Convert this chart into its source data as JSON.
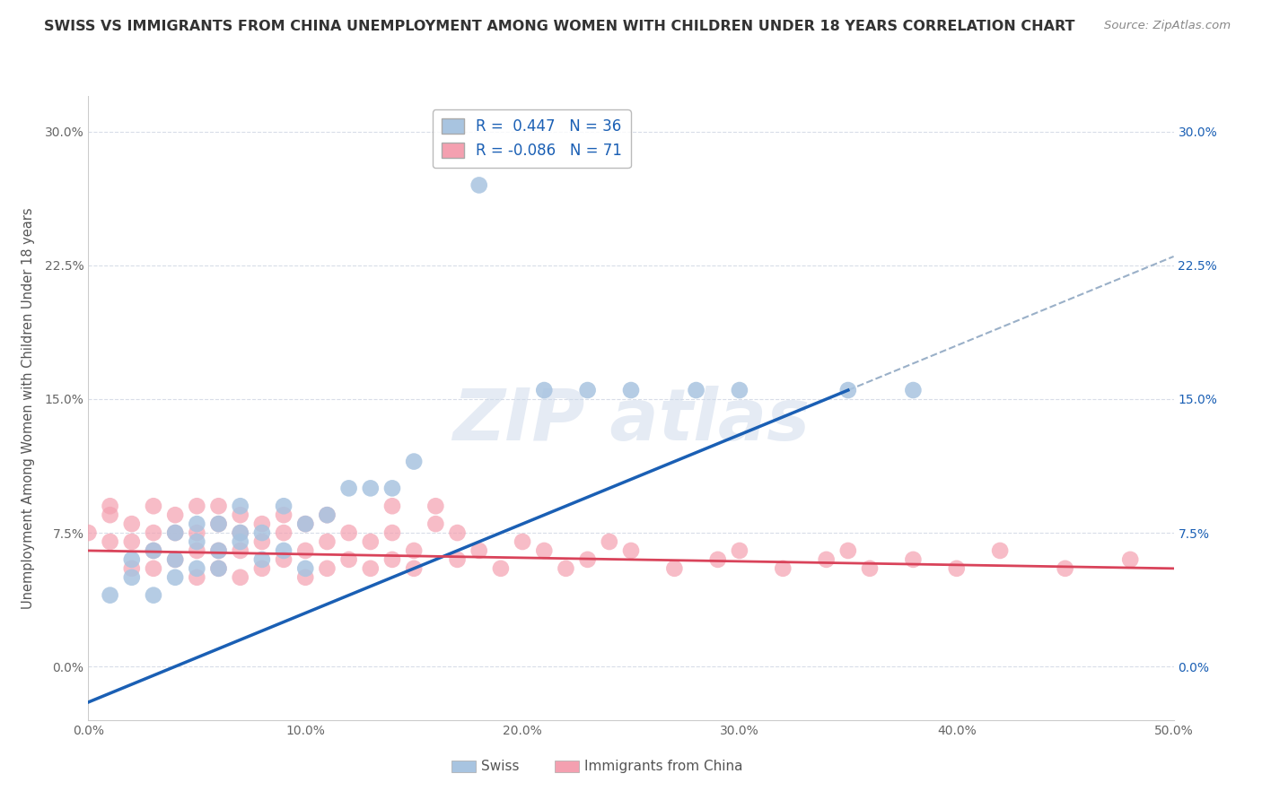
{
  "title": "SWISS VS IMMIGRANTS FROM CHINA UNEMPLOYMENT AMONG WOMEN WITH CHILDREN UNDER 18 YEARS CORRELATION CHART",
  "source": "Source: ZipAtlas.com",
  "ylabel": "Unemployment Among Women with Children Under 18 years",
  "xlim": [
    0.0,
    0.5
  ],
  "ylim": [
    -0.03,
    0.32
  ],
  "xticks": [
    0.0,
    0.1,
    0.2,
    0.3,
    0.4,
    0.5
  ],
  "xticklabels": [
    "0.0%",
    "10.0%",
    "20.0%",
    "30.0%",
    "40.0%",
    "50.0%"
  ],
  "yticks": [
    0.0,
    0.075,
    0.15,
    0.225,
    0.3
  ],
  "yticklabels": [
    "0.0%",
    "7.5%",
    "15.0%",
    "22.5%",
    "30.0%"
  ],
  "swiss_R": 0.447,
  "swiss_N": 36,
  "china_R": -0.086,
  "china_N": 71,
  "swiss_color": "#a8c4e0",
  "china_color": "#f4a0b0",
  "swiss_line_color": "#1a5fb4",
  "china_line_color": "#d9435a",
  "dash_line_color": "#9ab0c8",
  "grid_color": "#d8dde8",
  "background_color": "#ffffff",
  "swiss_x": [
    0.01,
    0.02,
    0.02,
    0.03,
    0.03,
    0.04,
    0.04,
    0.04,
    0.05,
    0.05,
    0.05,
    0.06,
    0.06,
    0.06,
    0.07,
    0.07,
    0.07,
    0.08,
    0.08,
    0.09,
    0.09,
    0.1,
    0.1,
    0.11,
    0.12,
    0.13,
    0.14,
    0.15,
    0.18,
    0.21,
    0.23,
    0.25,
    0.28,
    0.3,
    0.35,
    0.38
  ],
  "swiss_y": [
    0.04,
    0.05,
    0.06,
    0.04,
    0.065,
    0.05,
    0.06,
    0.075,
    0.055,
    0.07,
    0.08,
    0.055,
    0.065,
    0.08,
    0.07,
    0.09,
    0.075,
    0.06,
    0.075,
    0.09,
    0.065,
    0.055,
    0.08,
    0.085,
    0.1,
    0.1,
    0.1,
    0.115,
    0.27,
    0.155,
    0.155,
    0.155,
    0.155,
    0.155,
    0.155,
    0.155
  ],
  "china_x": [
    0.0,
    0.01,
    0.01,
    0.01,
    0.02,
    0.02,
    0.02,
    0.03,
    0.03,
    0.03,
    0.03,
    0.04,
    0.04,
    0.04,
    0.05,
    0.05,
    0.05,
    0.05,
    0.06,
    0.06,
    0.06,
    0.06,
    0.07,
    0.07,
    0.07,
    0.07,
    0.08,
    0.08,
    0.08,
    0.09,
    0.09,
    0.09,
    0.1,
    0.1,
    0.1,
    0.11,
    0.11,
    0.11,
    0.12,
    0.12,
    0.13,
    0.13,
    0.14,
    0.14,
    0.14,
    0.15,
    0.15,
    0.16,
    0.16,
    0.17,
    0.17,
    0.18,
    0.19,
    0.2,
    0.21,
    0.22,
    0.23,
    0.24,
    0.25,
    0.27,
    0.29,
    0.3,
    0.32,
    0.34,
    0.35,
    0.36,
    0.38,
    0.4,
    0.42,
    0.45,
    0.48
  ],
  "china_y": [
    0.075,
    0.07,
    0.085,
    0.09,
    0.055,
    0.07,
    0.08,
    0.055,
    0.065,
    0.075,
    0.09,
    0.06,
    0.075,
    0.085,
    0.05,
    0.065,
    0.075,
    0.09,
    0.055,
    0.065,
    0.08,
    0.09,
    0.05,
    0.065,
    0.075,
    0.085,
    0.055,
    0.07,
    0.08,
    0.06,
    0.075,
    0.085,
    0.05,
    0.065,
    0.08,
    0.055,
    0.07,
    0.085,
    0.06,
    0.075,
    0.055,
    0.07,
    0.06,
    0.075,
    0.09,
    0.055,
    0.065,
    0.08,
    0.09,
    0.06,
    0.075,
    0.065,
    0.055,
    0.07,
    0.065,
    0.055,
    0.06,
    0.07,
    0.065,
    0.055,
    0.06,
    0.065,
    0.055,
    0.06,
    0.065,
    0.055,
    0.06,
    0.055,
    0.065,
    0.055,
    0.06
  ]
}
